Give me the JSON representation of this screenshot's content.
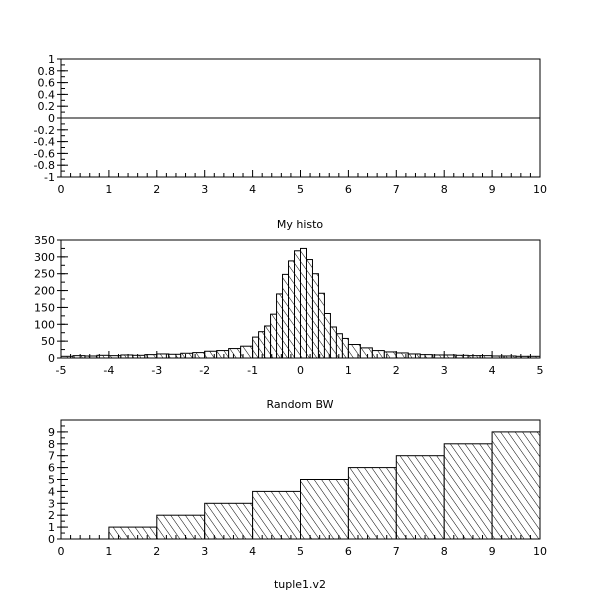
{
  "chart_data": [
    {
      "type": "bar",
      "title": "",
      "xlabel": "My histo",
      "ylabel": "",
      "xlim": [
        0,
        10
      ],
      "ylim": [
        -1,
        1
      ],
      "x_ticks": [
        "0",
        "1",
        "2",
        "3",
        "4",
        "5",
        "6",
        "7",
        "8",
        "9",
        "10"
      ],
      "y_ticks": [
        "-1",
        "-0.8",
        "-0.6",
        "-0.4",
        "-0.2",
        "0",
        "0.2",
        "0.4",
        "0.6",
        "0.8",
        "1"
      ],
      "bin_edges": [
        0,
        10
      ],
      "values": [
        0
      ],
      "hatched": false
    },
    {
      "type": "bar",
      "title": "",
      "xlabel": "Random BW",
      "ylabel": "",
      "xlim": [
        -5,
        5
      ],
      "ylim": [
        0,
        350
      ],
      "x_ticks": [
        "-5",
        "-4",
        "-3",
        "-2",
        "-1",
        "0",
        "1",
        "2",
        "3",
        "4",
        "5"
      ],
      "y_ticks": [
        "0",
        "50",
        "100",
        "150",
        "200",
        "250",
        "300",
        "350"
      ],
      "bin_edges": [
        -5,
        -4.75,
        -4.5,
        -4.25,
        -4,
        -3.75,
        -3.5,
        -3.25,
        -3,
        -2.75,
        -2.5,
        -2.25,
        -2,
        -1.75,
        -1.5,
        -1.25,
        -1,
        -0.875,
        -0.75,
        -0.625,
        -0.5,
        -0.375,
        -0.25,
        -0.125,
        0,
        0.125,
        0.25,
        0.375,
        0.5,
        0.625,
        0.75,
        0.875,
        1,
        1.25,
        1.5,
        1.75,
        2,
        2.25,
        2.5,
        2.75,
        3,
        3.25,
        3.5,
        3.75,
        4,
        4.25,
        4.5,
        4.75,
        5
      ],
      "values": [
        5,
        7,
        6,
        8,
        7,
        9,
        8,
        10,
        12,
        11,
        14,
        16,
        20,
        22,
        28,
        35,
        62,
        78,
        95,
        130,
        190,
        248,
        288,
        318,
        325,
        292,
        250,
        192,
        132,
        92,
        72,
        58,
        40,
        30,
        22,
        18,
        15,
        12,
        10,
        9,
        9,
        8,
        7,
        7,
        6,
        6,
        5,
        5
      ],
      "hatched": true
    },
    {
      "type": "bar",
      "title": "",
      "xlabel": "tuple1.v2",
      "ylabel": "",
      "xlim": [
        0,
        10
      ],
      "ylim": [
        0,
        10
      ],
      "x_ticks": [
        "0",
        "1",
        "2",
        "3",
        "4",
        "5",
        "6",
        "7",
        "8",
        "9",
        "10"
      ],
      "y_ticks": [
        "0",
        "1",
        "2",
        "3",
        "4",
        "5",
        "6",
        "7",
        "8",
        "9"
      ],
      "bin_edges": [
        0,
        1,
        2,
        3,
        4,
        5,
        6,
        7,
        8,
        9,
        10
      ],
      "values": [
        0,
        1,
        2,
        3,
        4,
        5,
        6,
        7,
        8,
        9
      ],
      "hatched": true
    }
  ]
}
